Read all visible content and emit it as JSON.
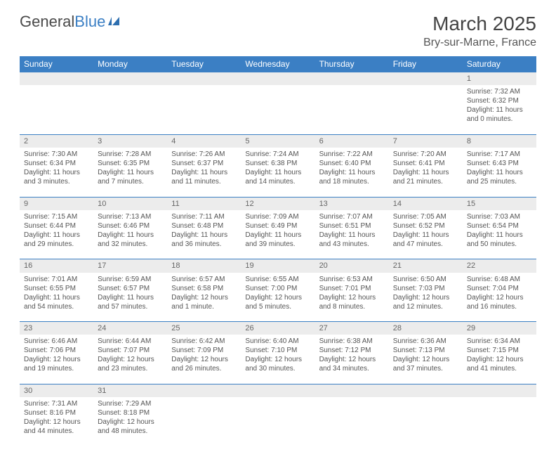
{
  "logo": {
    "text1": "General",
    "text2": "Blue"
  },
  "title": "March 2025",
  "location": "Bry-sur-Marne, France",
  "colors": {
    "header_bg": "#3b7fc4",
    "header_text": "#ffffff",
    "daynum_bg": "#ececec",
    "row_border": "#3b7fc4",
    "body_text": "#555555"
  },
  "columns": [
    "Sunday",
    "Monday",
    "Tuesday",
    "Wednesday",
    "Thursday",
    "Friday",
    "Saturday"
  ],
  "weeks": [
    [
      null,
      null,
      null,
      null,
      null,
      null,
      {
        "n": "1",
        "sunrise": "7:32 AM",
        "sunset": "6:32 PM",
        "daylight": "11 hours and 0 minutes."
      }
    ],
    [
      {
        "n": "2",
        "sunrise": "7:30 AM",
        "sunset": "6:34 PM",
        "daylight": "11 hours and 3 minutes."
      },
      {
        "n": "3",
        "sunrise": "7:28 AM",
        "sunset": "6:35 PM",
        "daylight": "11 hours and 7 minutes."
      },
      {
        "n": "4",
        "sunrise": "7:26 AM",
        "sunset": "6:37 PM",
        "daylight": "11 hours and 11 minutes."
      },
      {
        "n": "5",
        "sunrise": "7:24 AM",
        "sunset": "6:38 PM",
        "daylight": "11 hours and 14 minutes."
      },
      {
        "n": "6",
        "sunrise": "7:22 AM",
        "sunset": "6:40 PM",
        "daylight": "11 hours and 18 minutes."
      },
      {
        "n": "7",
        "sunrise": "7:20 AM",
        "sunset": "6:41 PM",
        "daylight": "11 hours and 21 minutes."
      },
      {
        "n": "8",
        "sunrise": "7:17 AM",
        "sunset": "6:43 PM",
        "daylight": "11 hours and 25 minutes."
      }
    ],
    [
      {
        "n": "9",
        "sunrise": "7:15 AM",
        "sunset": "6:44 PM",
        "daylight": "11 hours and 29 minutes."
      },
      {
        "n": "10",
        "sunrise": "7:13 AM",
        "sunset": "6:46 PM",
        "daylight": "11 hours and 32 minutes."
      },
      {
        "n": "11",
        "sunrise": "7:11 AM",
        "sunset": "6:48 PM",
        "daylight": "11 hours and 36 minutes."
      },
      {
        "n": "12",
        "sunrise": "7:09 AM",
        "sunset": "6:49 PM",
        "daylight": "11 hours and 39 minutes."
      },
      {
        "n": "13",
        "sunrise": "7:07 AM",
        "sunset": "6:51 PM",
        "daylight": "11 hours and 43 minutes."
      },
      {
        "n": "14",
        "sunrise": "7:05 AM",
        "sunset": "6:52 PM",
        "daylight": "11 hours and 47 minutes."
      },
      {
        "n": "15",
        "sunrise": "7:03 AM",
        "sunset": "6:54 PM",
        "daylight": "11 hours and 50 minutes."
      }
    ],
    [
      {
        "n": "16",
        "sunrise": "7:01 AM",
        "sunset": "6:55 PM",
        "daylight": "11 hours and 54 minutes."
      },
      {
        "n": "17",
        "sunrise": "6:59 AM",
        "sunset": "6:57 PM",
        "daylight": "11 hours and 57 minutes."
      },
      {
        "n": "18",
        "sunrise": "6:57 AM",
        "sunset": "6:58 PM",
        "daylight": "12 hours and 1 minute."
      },
      {
        "n": "19",
        "sunrise": "6:55 AM",
        "sunset": "7:00 PM",
        "daylight": "12 hours and 5 minutes."
      },
      {
        "n": "20",
        "sunrise": "6:53 AM",
        "sunset": "7:01 PM",
        "daylight": "12 hours and 8 minutes."
      },
      {
        "n": "21",
        "sunrise": "6:50 AM",
        "sunset": "7:03 PM",
        "daylight": "12 hours and 12 minutes."
      },
      {
        "n": "22",
        "sunrise": "6:48 AM",
        "sunset": "7:04 PM",
        "daylight": "12 hours and 16 minutes."
      }
    ],
    [
      {
        "n": "23",
        "sunrise": "6:46 AM",
        "sunset": "7:06 PM",
        "daylight": "12 hours and 19 minutes."
      },
      {
        "n": "24",
        "sunrise": "6:44 AM",
        "sunset": "7:07 PM",
        "daylight": "12 hours and 23 minutes."
      },
      {
        "n": "25",
        "sunrise": "6:42 AM",
        "sunset": "7:09 PM",
        "daylight": "12 hours and 26 minutes."
      },
      {
        "n": "26",
        "sunrise": "6:40 AM",
        "sunset": "7:10 PM",
        "daylight": "12 hours and 30 minutes."
      },
      {
        "n": "27",
        "sunrise": "6:38 AM",
        "sunset": "7:12 PM",
        "daylight": "12 hours and 34 minutes."
      },
      {
        "n": "28",
        "sunrise": "6:36 AM",
        "sunset": "7:13 PM",
        "daylight": "12 hours and 37 minutes."
      },
      {
        "n": "29",
        "sunrise": "6:34 AM",
        "sunset": "7:15 PM",
        "daylight": "12 hours and 41 minutes."
      }
    ],
    [
      {
        "n": "30",
        "sunrise": "7:31 AM",
        "sunset": "8:16 PM",
        "daylight": "12 hours and 44 minutes."
      },
      {
        "n": "31",
        "sunrise": "7:29 AM",
        "sunset": "8:18 PM",
        "daylight": "12 hours and 48 minutes."
      },
      null,
      null,
      null,
      null,
      null
    ]
  ],
  "labels": {
    "sunrise": "Sunrise: ",
    "sunset": "Sunset: ",
    "daylight": "Daylight: "
  }
}
